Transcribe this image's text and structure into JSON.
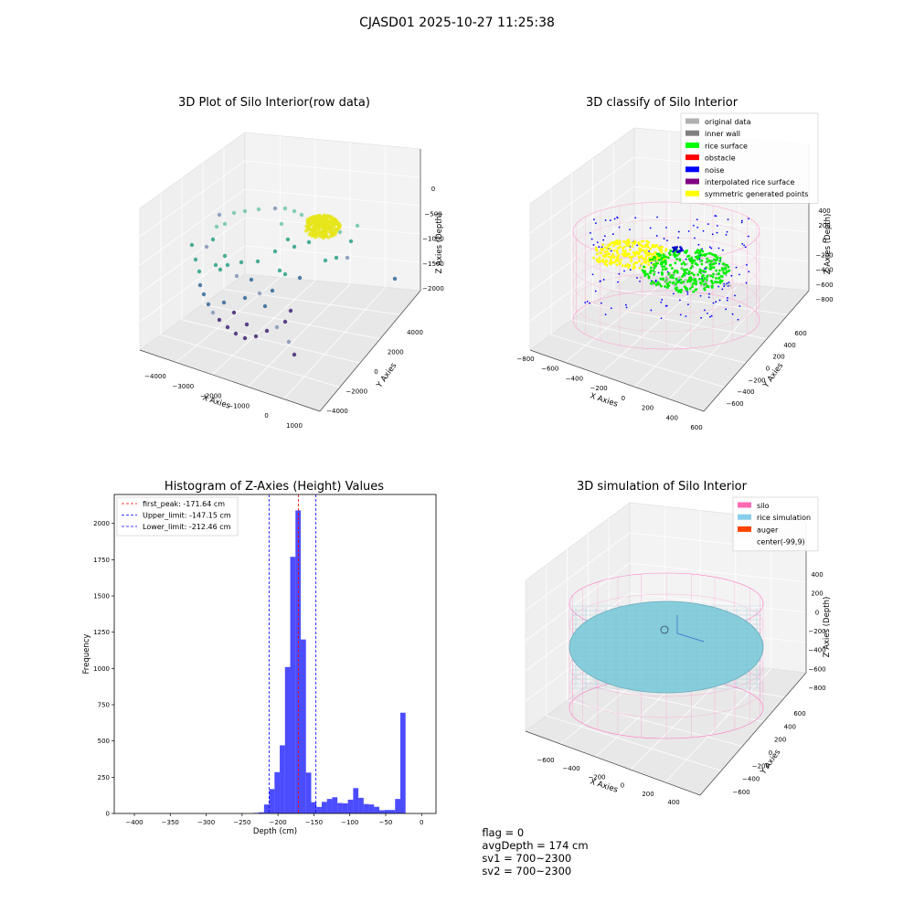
{
  "figure": {
    "suptitle": "CJASD01 2025-10-27 11:25:38"
  },
  "panels": {
    "raw": {
      "title": "3D Plot of Silo Interior(row data)",
      "xlabel": "X Axies",
      "ylabel": "Y Axies",
      "zlabel": "Z Axies (Depth)",
      "xticks": [
        "−4000",
        "−3000",
        "−2000",
        "−1000",
        "0",
        "1000"
      ],
      "yticks": [
        "−4000",
        "−2000",
        "0",
        "2000",
        "4000"
      ],
      "zticks": [
        "0",
        "−500",
        "−1000",
        "−1500",
        "−2000"
      ]
    },
    "classify": {
      "title": "3D classify of Silo Interior",
      "xlabel": "X Axies",
      "ylabel": "Y Axies",
      "zlabel": "Z Axies (Depth)",
      "xticks": [
        "−800",
        "−600",
        "−400",
        "−200",
        "0",
        "200",
        "400",
        "600"
      ],
      "yticks": [
        "−600",
        "−400",
        "−200",
        "0",
        "200",
        "400",
        "600"
      ],
      "zticks": [
        "400",
        "200",
        "0",
        "−200",
        "−400",
        "−600",
        "−800"
      ],
      "legend": [
        {
          "label": "original data",
          "color": "#b0b0b0"
        },
        {
          "label": "inner wall",
          "color": "#808080"
        },
        {
          "label": "rice surface",
          "color": "#00ff00"
        },
        {
          "label": "obstacle",
          "color": "#ff0000"
        },
        {
          "label": "noise",
          "color": "#0000ff"
        },
        {
          "label": "interpolated rice surface",
          "color": "#800080"
        },
        {
          "label": "symmetric generated points",
          "color": "#ffff00"
        }
      ]
    },
    "sim": {
      "title": "3D simulation of Silo Interior",
      "xlabel": "X Axies",
      "ylabel": "Y Axies",
      "zlabel": "Z Axies (Depth)",
      "xticks": [
        "−600",
        "−400",
        "−200",
        "0",
        "200",
        "400"
      ],
      "yticks": [
        "−600",
        "−400",
        "−200",
        "0",
        "200",
        "400",
        "600"
      ],
      "zticks": [
        "400",
        "200",
        "0",
        "−200",
        "−400",
        "−600",
        "−800"
      ],
      "legend": [
        {
          "label": "silo",
          "color": "#ff69b4"
        },
        {
          "label": "rice simulation",
          "color": "#87ceeb"
        },
        {
          "label": "auger",
          "color": "#ff4500"
        },
        {
          "label": "center(-99,9)",
          "color": "#ffffff"
        }
      ]
    }
  },
  "chart_data": {
    "type": "bar",
    "title": "Histogram of Z-Axies (Height) Values",
    "xlabel": "Depth (cm)",
    "ylabel": "Frequency",
    "xlim": [
      -428,
      20
    ],
    "ylim": [
      0,
      2200
    ],
    "xticks": [
      -400,
      -350,
      -300,
      -250,
      -200,
      -150,
      -100,
      -50,
      0
    ],
    "yticks": [
      0,
      250,
      500,
      750,
      1000,
      1250,
      1500,
      1750,
      2000
    ],
    "bar_color": "#0000ff",
    "bin_width": 7.3,
    "bins": [
      {
        "x": -230.4,
        "v": 4
      },
      {
        "x": -223.1,
        "v": 8
      },
      {
        "x": -215.8,
        "v": 62
      },
      {
        "x": -208.5,
        "v": 168
      },
      {
        "x": -201.2,
        "v": 285
      },
      {
        "x": -193.9,
        "v": 470
      },
      {
        "x": -186.6,
        "v": 1010
      },
      {
        "x": -179.3,
        "v": 1770
      },
      {
        "x": -172.0,
        "v": 2090
      },
      {
        "x": -164.7,
        "v": 1200
      },
      {
        "x": -157.4,
        "v": 282
      },
      {
        "x": -150.1,
        "v": 78
      },
      {
        "x": -142.8,
        "v": 45
      },
      {
        "x": -135.5,
        "v": 80
      },
      {
        "x": -128.2,
        "v": 100
      },
      {
        "x": -120.9,
        "v": 112
      },
      {
        "x": -113.6,
        "v": 72
      },
      {
        "x": -106.3,
        "v": 70
      },
      {
        "x": -99.0,
        "v": 95
      },
      {
        "x": -91.7,
        "v": 175
      },
      {
        "x": -84.4,
        "v": 108
      },
      {
        "x": -77.1,
        "v": 65
      },
      {
        "x": -69.8,
        "v": 62
      },
      {
        "x": -62.5,
        "v": 46
      },
      {
        "x": -55.2,
        "v": 22
      },
      {
        "x": -47.9,
        "v": 24
      },
      {
        "x": -40.6,
        "v": 24
      },
      {
        "x": -33.3,
        "v": 100
      },
      {
        "x": -26.0,
        "v": 695
      }
    ],
    "vlines": [
      {
        "label": "first_peak: -171.64 cm",
        "x": -171.64,
        "color": "#ff0000"
      },
      {
        "label": "Upper_limit: -147.15 cm",
        "x": -147.15,
        "color": "#0000ff"
      },
      {
        "label": "Lower_limit: -212.46 cm",
        "x": -212.46,
        "color": "#0000ff"
      }
    ],
    "legend_position": "upper-left",
    "grid": false
  },
  "status": {
    "flag": "flag = 0",
    "avg_depth": "avgDepth = 174 cm",
    "sv1": "sv1 = 700~2300",
    "sv2": "sv2 = 700~2300"
  }
}
